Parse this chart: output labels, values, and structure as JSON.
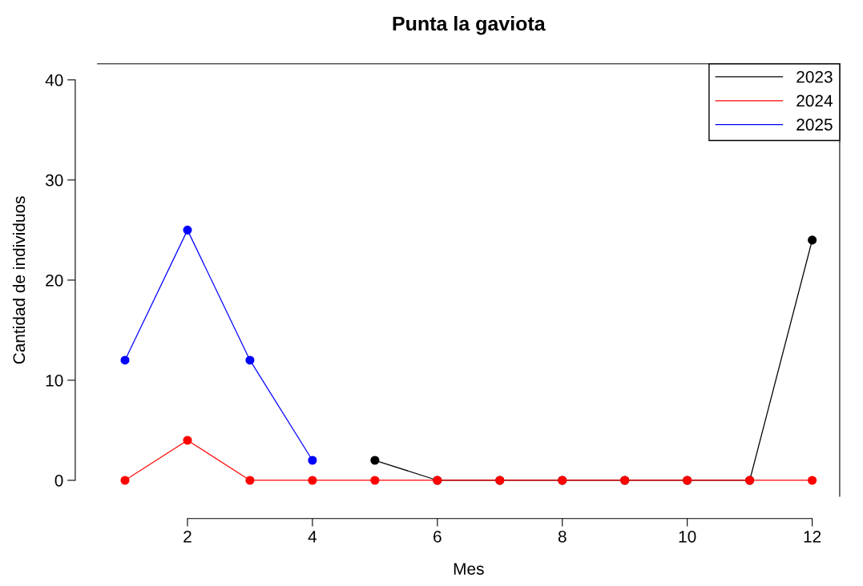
{
  "chart_data": {
    "type": "line",
    "title": "Punta la gaviota",
    "xlabel": "Mes",
    "ylabel": "Cantidad de individuos",
    "xlim": [
      0.56,
      12.44
    ],
    "xticks": [
      2,
      4,
      6,
      8,
      10,
      12
    ],
    "ylim": [
      -1.6,
      41.6
    ],
    "yticks": [
      0,
      10,
      20,
      30,
      40
    ],
    "grid": false,
    "legend": "top right",
    "marker": "circle",
    "line_style": "solid",
    "series": [
      {
        "name": "2023",
        "color": "#000000",
        "x": [
          5,
          6,
          7,
          8,
          9,
          10,
          11,
          12
        ],
        "values": [
          2,
          0,
          0,
          0,
          0,
          0,
          0,
          24
        ]
      },
      {
        "name": "2024",
        "color": "#ff0000",
        "x": [
          1,
          2,
          3,
          4,
          5,
          6,
          7,
          8,
          9,
          10,
          11,
          12
        ],
        "values": [
          0,
          4,
          0,
          0,
          0,
          0,
          0,
          0,
          0,
          0,
          0,
          0
        ]
      },
      {
        "name": "2025",
        "color": "#0000ff",
        "x": [
          1,
          2,
          3,
          4
        ],
        "values": [
          12,
          25,
          12,
          2
        ]
      }
    ]
  }
}
